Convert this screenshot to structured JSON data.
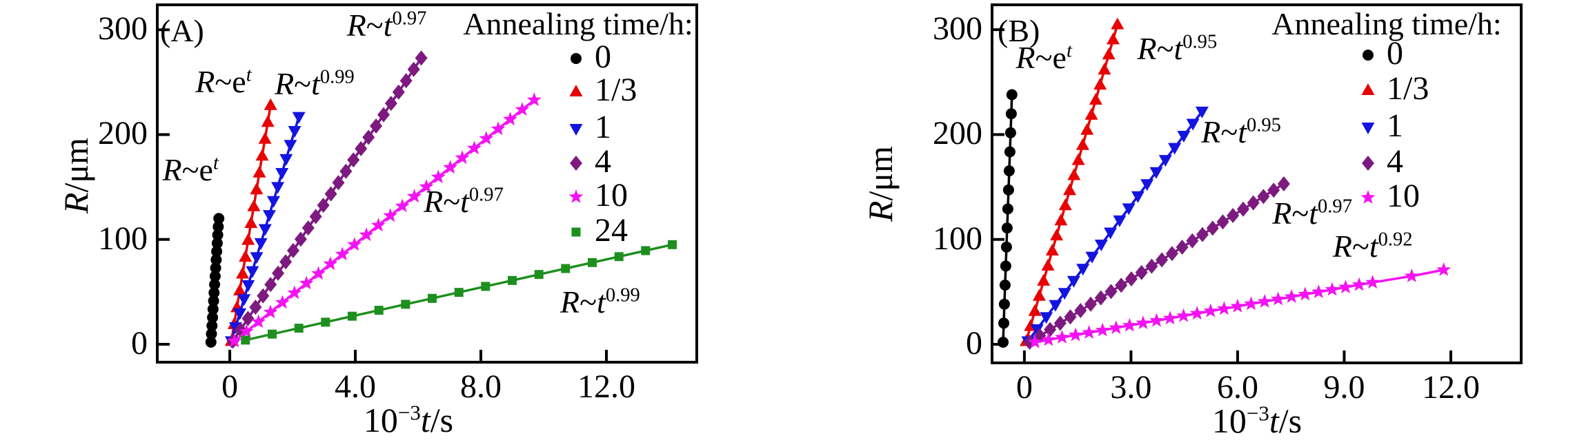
{
  "chart_data": [
    {
      "type": "scatter",
      "panel_label": "(A)",
      "xlabel": "10⁻³t/s",
      "ylabel": "R/μm",
      "xlabel_parts": {
        "base": "10",
        "sup": "−3",
        "var": "t",
        "suffix": "/s"
      },
      "ylabel_parts": {
        "var": "R",
        "suffix": "/μm"
      },
      "xlim": [
        -2.31,
        14.88
      ],
      "ylim": [
        -17.1,
        323.8
      ],
      "grid": false,
      "legend_position": "top-right-inside",
      "legend_title": "Annealing time/h:",
      "x_ticks": [
        {
          "v": 0,
          "label": "0"
        },
        {
          "v": 4,
          "label": "4.0"
        },
        {
          "v": 8,
          "label": "8.0"
        },
        {
          "v": 12,
          "label": "12.0"
        }
      ],
      "y_ticks": [
        {
          "v": 0,
          "label": "0"
        },
        {
          "v": 100,
          "label": "100"
        },
        {
          "v": 200,
          "label": "200"
        },
        {
          "v": 300,
          "label": "300"
        }
      ],
      "series_note": "markers are evenly spaced along a straight segment from (x_start,R_start) to (x_end,R_end); x in 10^3 s, R in um",
      "series": [
        {
          "legend_label": "0",
          "marker": "circle",
          "color": "#000000",
          "growth_law": "R~e^t",
          "x_start": -0.6,
          "R_start": 2,
          "x_end": -0.35,
          "R_end": 120,
          "n_points": 16
        },
        {
          "legend_label": "1/3",
          "marker": "triangle-up",
          "color": "#e80202",
          "growth_law": "R~e^t",
          "x_start": 0.05,
          "R_start": 3,
          "x_end": 1.3,
          "R_end": 228,
          "n_points": 15
        },
        {
          "legend_label": "1",
          "marker": "triangle-down",
          "color": "#1414e0",
          "growth_law": "R~t^0.99",
          "x_start": 0.05,
          "R_start": 3,
          "x_end": 2.2,
          "R_end": 217,
          "n_points": 17
        },
        {
          "legend_label": "4",
          "marker": "diamond",
          "color": "#7d1a80",
          "growth_law": "R~t^0.97",
          "x_start": 0.1,
          "R_start": 3,
          "x_end": 6.1,
          "R_end": 273,
          "n_points": 26
        },
        {
          "legend_label": "10",
          "marker": "star",
          "color": "#f312f3",
          "growth_law": "R~t^0.97",
          "x_start": 0.15,
          "R_start": 3,
          "x_end": 9.7,
          "R_end": 233,
          "n_points": 26
        },
        {
          "legend_label": "24",
          "marker": "square",
          "color": "#1e8f1e",
          "growth_law": "R~t^0.99",
          "x_start": 0.5,
          "R_start": 4,
          "x_end": 14.1,
          "R_end": 95,
          "n_points": 17
        }
      ],
      "annotations": [
        {
          "text": "R~e^t",
          "base": "e",
          "exp": "t",
          "x": -1.25,
          "R": 166
        },
        {
          "text": "R~e^t",
          "base": "e",
          "exp": "t",
          "x": -0.2,
          "R": 250
        },
        {
          "text": "R~t^0.99",
          "base": "t",
          "exp": "0.99",
          "x": 2.7,
          "R": 248
        },
        {
          "text": "R~t^0.97",
          "base": "t",
          "exp": "0.97",
          "x": 5.0,
          "R": 304
        },
        {
          "text": "R~t^0.97",
          "base": "t",
          "exp": "0.97",
          "x": 7.45,
          "R": 136
        },
        {
          "text": "R~t^0.99",
          "base": "t",
          "exp": "0.99",
          "x": 11.8,
          "R": 40
        }
      ]
    },
    {
      "type": "scatter",
      "panel_label": "(B)",
      "xlabel": "10⁻³t/s",
      "ylabel": "R/μm",
      "xlabel_parts": {
        "base": "10",
        "sup": "−3",
        "var": "t",
        "suffix": "/s"
      },
      "ylabel_parts": {
        "var": "R",
        "suffix": "/μm"
      },
      "xlim": [
        -0.91,
        13.98
      ],
      "ylim": [
        -17.7,
        323.7
      ],
      "grid": false,
      "legend_position": "top-right-inside",
      "legend_title": "Annealing time/h:",
      "x_ticks": [
        {
          "v": 0,
          "label": "0"
        },
        {
          "v": 3,
          "label": "3.0"
        },
        {
          "v": 6,
          "label": "6.0"
        },
        {
          "v": 9,
          "label": "9.0"
        },
        {
          "v": 12,
          "label": "12.0"
        }
      ],
      "y_ticks": [
        {
          "v": 0,
          "label": "0"
        },
        {
          "v": 100,
          "label": "100"
        },
        {
          "v": 200,
          "label": "200"
        },
        {
          "v": 300,
          "label": "300"
        }
      ],
      "series_note": "markers are evenly spaced along a straight segment from (x_start,R_start) to (x_end,R_end); extra_points are sparse trailing markers",
      "series": [
        {
          "legend_label": "0",
          "marker": "circle",
          "color": "#000000",
          "growth_law": "R~e^t",
          "x_start": -0.6,
          "R_start": 2,
          "x_end": -0.35,
          "R_end": 238,
          "n_points": 14
        },
        {
          "legend_label": "1/3",
          "marker": "triangle-up",
          "color": "#e80202",
          "growth_law": "R~t^0.95",
          "x_start": 0.05,
          "R_start": 3,
          "x_end": 2.62,
          "R_end": 305,
          "n_points": 22
        },
        {
          "legend_label": "1",
          "marker": "triangle-down",
          "color": "#1414e0",
          "growth_law": "R~t^0.95",
          "x_start": 0.1,
          "R_start": 3,
          "x_end": 5.0,
          "R_end": 222,
          "n_points": 20
        },
        {
          "legend_label": "4",
          "marker": "diamond",
          "color": "#7d1a80",
          "growth_law": "R~t^0.97",
          "x_start": 0.15,
          "R_start": 2,
          "x_end": 7.3,
          "R_end": 153,
          "n_points": 26
        },
        {
          "legend_label": "10",
          "marker": "star",
          "color": "#f312f3",
          "growth_law": "R~t^0.92",
          "x_start": 0.3,
          "R_start": 2,
          "x_end": 9.8,
          "R_end": 59,
          "n_points": 26,
          "extra_points": [
            [
              10.9,
              65
            ],
            [
              11.8,
              71
            ]
          ]
        }
      ],
      "annotations": [
        {
          "text": "R~e^t",
          "base": "e",
          "exp": "t",
          "x": 0.55,
          "R": 273
        },
        {
          "text": "R~t^0.95",
          "base": "t",
          "exp": "0.95",
          "x": 4.3,
          "R": 282
        },
        {
          "text": "R~t^0.95",
          "base": "t",
          "exp": "0.95",
          "x": 6.1,
          "R": 202
        },
        {
          "text": "R~t^0.97",
          "base": "t",
          "exp": "0.97",
          "x": 8.1,
          "R": 125
        },
        {
          "text": "R~t^0.92",
          "base": "t",
          "exp": "0.92",
          "x": 9.8,
          "R": 93
        }
      ]
    }
  ]
}
